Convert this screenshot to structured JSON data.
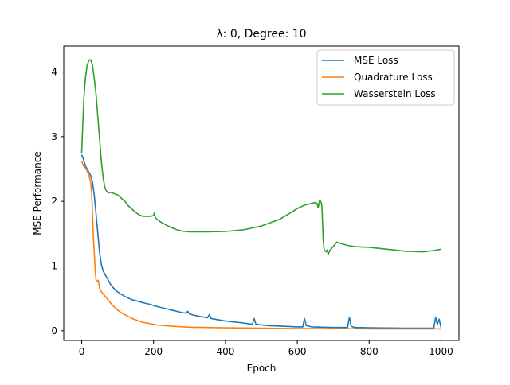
{
  "chart_data": {
    "type": "line",
    "title": "λ: 0, Degree: 10",
    "xlabel": "Epoch",
    "ylabel": "MSE Performance",
    "xlim": [
      -50,
      1050
    ],
    "ylim": [
      -0.15,
      4.4
    ],
    "xticks": [
      0,
      200,
      400,
      600,
      800,
      1000
    ],
    "yticks": [
      0,
      1,
      2,
      3,
      4
    ],
    "grid": false,
    "legend_position": "top-right",
    "series": [
      {
        "name": "MSE Loss",
        "color": "#1f77b4",
        "points": [
          [
            0,
            2.72
          ],
          [
            5,
            2.65
          ],
          [
            10,
            2.55
          ],
          [
            15,
            2.5
          ],
          [
            20,
            2.45
          ],
          [
            25,
            2.4
          ],
          [
            30,
            2.3
          ],
          [
            35,
            2.1
          ],
          [
            40,
            1.8
          ],
          [
            45,
            1.5
          ],
          [
            50,
            1.2
          ],
          [
            55,
            1.02
          ],
          [
            60,
            0.92
          ],
          [
            70,
            0.82
          ],
          [
            80,
            0.72
          ],
          [
            90,
            0.65
          ],
          [
            100,
            0.6
          ],
          [
            120,
            0.53
          ],
          [
            140,
            0.48
          ],
          [
            160,
            0.45
          ],
          [
            180,
            0.42
          ],
          [
            190,
            0.41
          ],
          [
            195,
            0.4
          ],
          [
            200,
            0.39
          ],
          [
            220,
            0.36
          ],
          [
            250,
            0.32
          ],
          [
            280,
            0.28
          ],
          [
            290,
            0.27
          ],
          [
            295,
            0.3
          ],
          [
            300,
            0.26
          ],
          [
            320,
            0.23
          ],
          [
            350,
            0.2
          ],
          [
            355,
            0.25
          ],
          [
            360,
            0.19
          ],
          [
            400,
            0.15
          ],
          [
            450,
            0.12
          ],
          [
            475,
            0.1
          ],
          [
            480,
            0.19
          ],
          [
            485,
            0.1
          ],
          [
            520,
            0.08
          ],
          [
            560,
            0.07
          ],
          [
            600,
            0.06
          ],
          [
            615,
            0.06
          ],
          [
            620,
            0.19
          ],
          [
            625,
            0.08
          ],
          [
            640,
            0.06
          ],
          [
            700,
            0.05
          ],
          [
            740,
            0.05
          ],
          [
            745,
            0.21
          ],
          [
            750,
            0.07
          ],
          [
            760,
            0.05
          ],
          [
            800,
            0.045
          ],
          [
            900,
            0.04
          ],
          [
            975,
            0.04
          ],
          [
            980,
            0.04
          ],
          [
            985,
            0.21
          ],
          [
            990,
            0.1
          ],
          [
            995,
            0.18
          ],
          [
            1000,
            0.05
          ]
        ]
      },
      {
        "name": "Quadrature Loss",
        "color": "#ff7f0e",
        "points": [
          [
            0,
            2.62
          ],
          [
            5,
            2.55
          ],
          [
            10,
            2.52
          ],
          [
            15,
            2.47
          ],
          [
            20,
            2.4
          ],
          [
            25,
            2.3
          ],
          [
            28,
            2.1
          ],
          [
            30,
            1.8
          ],
          [
            33,
            1.4
          ],
          [
            36,
            1.1
          ],
          [
            38,
            0.9
          ],
          [
            40,
            0.78
          ],
          [
            43,
            0.76
          ],
          [
            46,
            0.78
          ],
          [
            50,
            0.65
          ],
          [
            55,
            0.6
          ],
          [
            60,
            0.57
          ],
          [
            70,
            0.5
          ],
          [
            80,
            0.43
          ],
          [
            90,
            0.37
          ],
          [
            100,
            0.32
          ],
          [
            110,
            0.28
          ],
          [
            120,
            0.25
          ],
          [
            130,
            0.22
          ],
          [
            140,
            0.19
          ],
          [
            150,
            0.17
          ],
          [
            160,
            0.15
          ],
          [
            170,
            0.13
          ],
          [
            180,
            0.12
          ],
          [
            190,
            0.11
          ],
          [
            200,
            0.1
          ],
          [
            210,
            0.09
          ],
          [
            220,
            0.085
          ],
          [
            230,
            0.08
          ],
          [
            250,
            0.07
          ],
          [
            300,
            0.055
          ],
          [
            350,
            0.05
          ],
          [
            400,
            0.045
          ],
          [
            500,
            0.04
          ],
          [
            600,
            0.035
          ],
          [
            700,
            0.035
          ],
          [
            800,
            0.03
          ],
          [
            900,
            0.03
          ],
          [
            1000,
            0.03
          ]
        ]
      },
      {
        "name": "Wasserstein Loss",
        "color": "#2ca02c",
        "points": [
          [
            0,
            2.75
          ],
          [
            3,
            3.2
          ],
          [
            6,
            3.6
          ],
          [
            10,
            3.9
          ],
          [
            15,
            4.1
          ],
          [
            20,
            4.18
          ],
          [
            25,
            4.19
          ],
          [
            30,
            4.1
          ],
          [
            35,
            3.9
          ],
          [
            40,
            3.65
          ],
          [
            45,
            3.3
          ],
          [
            50,
            2.95
          ],
          [
            55,
            2.6
          ],
          [
            60,
            2.35
          ],
          [
            65,
            2.2
          ],
          [
            70,
            2.15
          ],
          [
            75,
            2.13
          ],
          [
            80,
            2.14
          ],
          [
            90,
            2.12
          ],
          [
            100,
            2.1
          ],
          [
            110,
            2.05
          ],
          [
            120,
            2.0
          ],
          [
            130,
            1.93
          ],
          [
            140,
            1.88
          ],
          [
            150,
            1.83
          ],
          [
            160,
            1.79
          ],
          [
            170,
            1.77
          ],
          [
            180,
            1.77
          ],
          [
            190,
            1.77
          ],
          [
            200,
            1.78
          ],
          [
            202,
            1.82
          ],
          [
            205,
            1.75
          ],
          [
            210,
            1.72
          ],
          [
            220,
            1.68
          ],
          [
            240,
            1.62
          ],
          [
            260,
            1.57
          ],
          [
            280,
            1.54
          ],
          [
            300,
            1.53
          ],
          [
            350,
            1.53
          ],
          [
            400,
            1.535
          ],
          [
            450,
            1.56
          ],
          [
            500,
            1.62
          ],
          [
            550,
            1.72
          ],
          [
            580,
            1.82
          ],
          [
            600,
            1.89
          ],
          [
            620,
            1.94
          ],
          [
            640,
            1.97
          ],
          [
            650,
            1.98
          ],
          [
            655,
            1.97
          ],
          [
            658,
            1.9
          ],
          [
            660,
            1.95
          ],
          [
            662,
            2.02
          ],
          [
            665,
            2.0
          ],
          [
            668,
            1.95
          ],
          [
            670,
            1.7
          ],
          [
            672,
            1.4
          ],
          [
            675,
            1.25
          ],
          [
            680,
            1.22
          ],
          [
            683,
            1.25
          ],
          [
            686,
            1.18
          ],
          [
            690,
            1.24
          ],
          [
            700,
            1.3
          ],
          [
            710,
            1.37
          ],
          [
            720,
            1.35
          ],
          [
            740,
            1.32
          ],
          [
            760,
            1.3
          ],
          [
            800,
            1.29
          ],
          [
            850,
            1.26
          ],
          [
            900,
            1.23
          ],
          [
            950,
            1.22
          ],
          [
            980,
            1.24
          ],
          [
            1000,
            1.26
          ]
        ]
      }
    ]
  }
}
